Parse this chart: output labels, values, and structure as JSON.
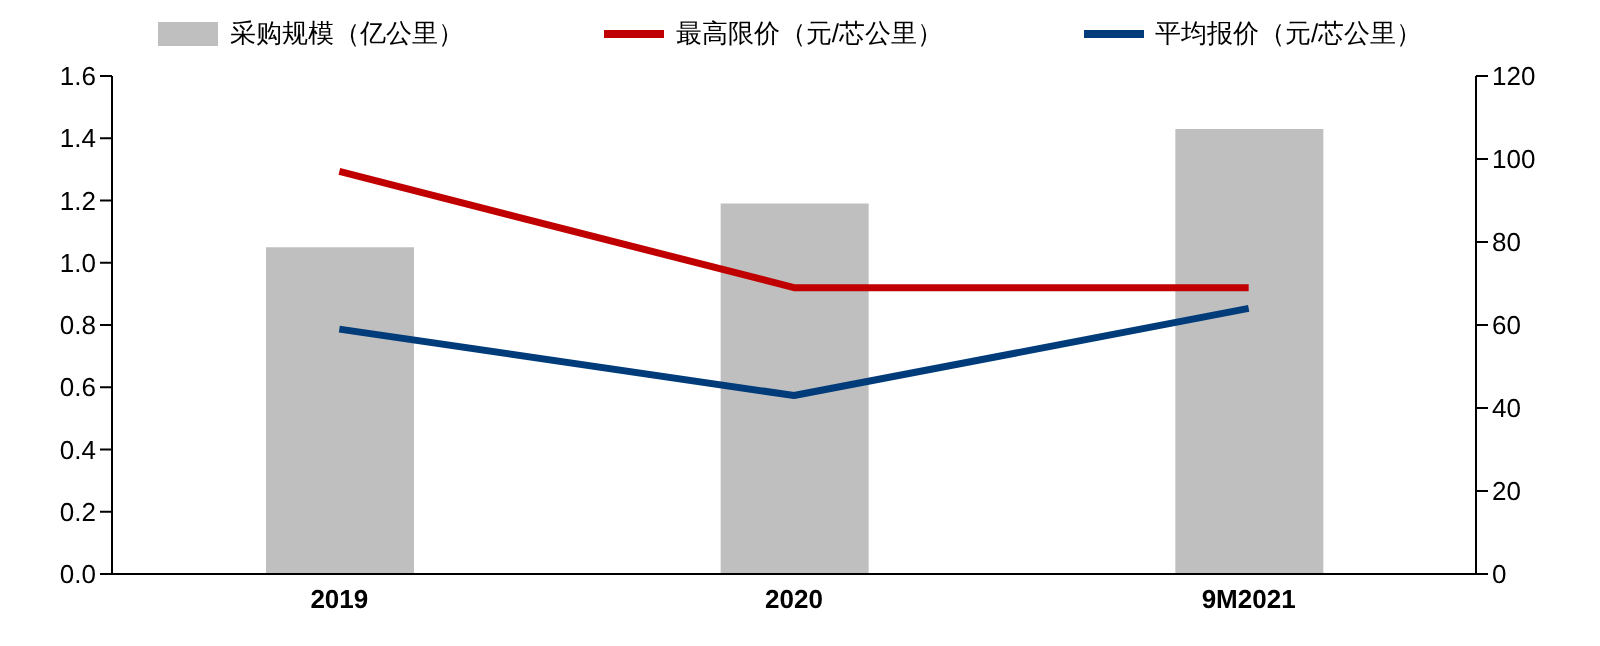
{
  "chart_data": {
    "type": "bar",
    "categories": [
      "2019",
      "2020",
      "9M2021"
    ],
    "series": [
      {
        "name": "采购规模（亿公里）",
        "color": "#bfbfbf",
        "values": [
          1.05,
          1.19,
          1.43
        ]
      },
      {
        "name": "最高限价（元/芯公里）",
        "type": "line",
        "axis": "y2",
        "color": "#c00000",
        "values": [
          97,
          69,
          69
        ]
      },
      {
        "name": "平均报价（元/芯公里）",
        "type": "line",
        "axis": "y2",
        "color": "#003b7a",
        "values": [
          59,
          43,
          64
        ]
      }
    ],
    "ylim": [
      0,
      1.6
    ],
    "yticks": [
      {
        "value": 0,
        "label": "0.0"
      },
      0.2,
      0.4,
      0.6,
      0.8,
      {
        "value": 1,
        "label": "1.0"
      },
      1.2,
      1.4,
      1.6
    ],
    "y2lim": [
      0,
      120
    ],
    "y2ticks": [
      0,
      20,
      40,
      60,
      80,
      100,
      120
    ],
    "legend": "top",
    "grid": false,
    "marker": "none",
    "line_style": "solid"
  }
}
